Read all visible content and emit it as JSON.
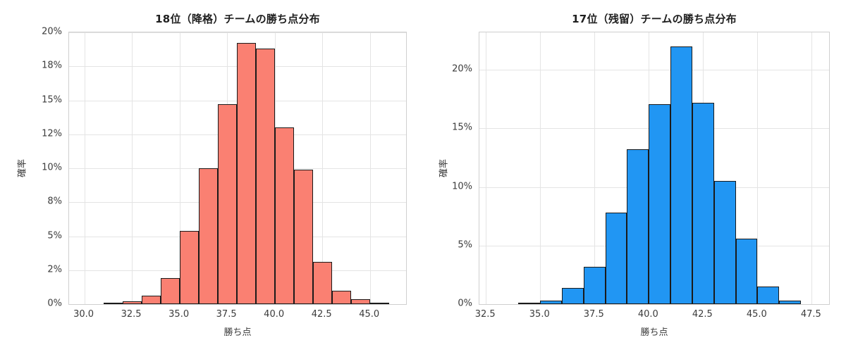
{
  "figure": {
    "background": "#ffffff"
  },
  "chart_data": [
    {
      "type": "bar",
      "subtype": "histogram",
      "title": "18位（降格）チームの勝ち点分布",
      "xlabel": "勝ち点",
      "ylabel": "確率",
      "bar_color": "#fa8072",
      "bar_edge_color": "#1a1a1a",
      "grid": true,
      "xlim": [
        29.2,
        46.9
      ],
      "ylim": [
        0,
        20
      ],
      "bin_start": 31.0,
      "bin_width": 1.0,
      "values": [
        0.05,
        0.2,
        0.6,
        1.9,
        5.4,
        10.0,
        14.7,
        19.2,
        18.8,
        13.0,
        9.9,
        3.1,
        1.0,
        0.35,
        0.05
      ],
      "xticks": [
        {
          "value": 30.0,
          "label": "30.0"
        },
        {
          "value": 32.5,
          "label": "32.5"
        },
        {
          "value": 35.0,
          "label": "35.0"
        },
        {
          "value": 37.5,
          "label": "37.5"
        },
        {
          "value": 40.0,
          "label": "40.0"
        },
        {
          "value": 42.5,
          "label": "42.5"
        },
        {
          "value": 45.0,
          "label": "45.0"
        }
      ],
      "yticks": [
        {
          "value": 0,
          "label": "0%"
        },
        {
          "value": 2.5,
          "label": "2%"
        },
        {
          "value": 5,
          "label": "5%"
        },
        {
          "value": 7.5,
          "label": "8%"
        },
        {
          "value": 10,
          "label": "10%"
        },
        {
          "value": 12.5,
          "label": "12%"
        },
        {
          "value": 15,
          "label": "15%"
        },
        {
          "value": 17.5,
          "label": "18%"
        },
        {
          "value": 20,
          "label": "20%"
        }
      ]
    },
    {
      "type": "bar",
      "subtype": "histogram",
      "title": "17位（残留）チームの勝ち点分布",
      "xlabel": "勝ち点",
      "ylabel": "確率",
      "bar_color": "#2196f3",
      "bar_edge_color": "#1a1a1a",
      "grid": true,
      "xlim": [
        32.2,
        48.3
      ],
      "ylim": [
        0,
        23.2
      ],
      "bin_start": 34.0,
      "bin_width": 1.0,
      "values": [
        0.05,
        0.3,
        1.4,
        3.2,
        7.8,
        13.2,
        17.1,
        22.0,
        17.2,
        10.5,
        5.6,
        1.5,
        0.3
      ],
      "xticks": [
        {
          "value": 32.5,
          "label": "32.5"
        },
        {
          "value": 35.0,
          "label": "35.0"
        },
        {
          "value": 37.5,
          "label": "37.5"
        },
        {
          "value": 40.0,
          "label": "40.0"
        },
        {
          "value": 42.5,
          "label": "42.5"
        },
        {
          "value": 45.0,
          "label": "45.0"
        },
        {
          "value": 47.5,
          "label": "47.5"
        }
      ],
      "yticks": [
        {
          "value": 0,
          "label": "0%"
        },
        {
          "value": 5,
          "label": "5%"
        },
        {
          "value": 10,
          "label": "10%"
        },
        {
          "value": 15,
          "label": "15%"
        },
        {
          "value": 20,
          "label": "20%"
        }
      ]
    }
  ]
}
